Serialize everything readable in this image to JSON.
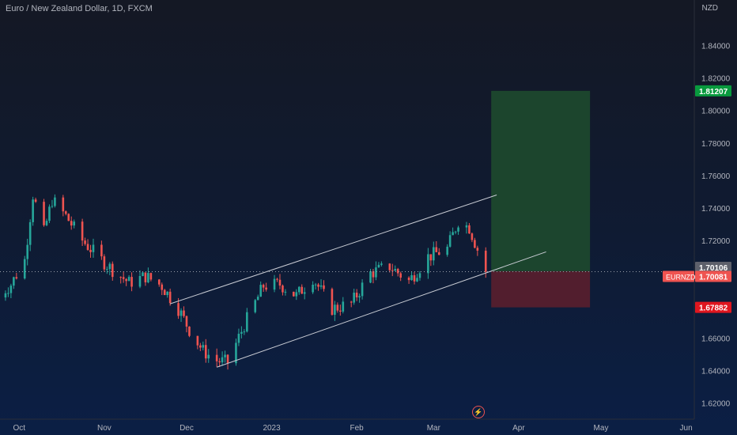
{
  "header": {
    "title": "Euro / New Zealand Dollar, 1D, FXCM",
    "currency": "NZD"
  },
  "colors": {
    "up": "#26a69a",
    "down": "#ef5350",
    "profit_zone": "#1e4a2e",
    "loss_zone": "#5a1f2e",
    "channel": "#c9ccd4",
    "axis_text": "#b2b5be"
  },
  "icons": {
    "event_marker": "lightning-icon"
  },
  "event_marker_glyph": "⚡",
  "chart_data": {
    "type": "candlestick",
    "symbol": "EURNZD",
    "title": "Euro / New Zealand Dollar, 1D, FXCM",
    "y_unit": "NZD",
    "ylim": [
      1.61,
      1.868
    ],
    "y_ticks": [
      "1.62000",
      "1.64000",
      "1.66000",
      "1.68000",
      "1.70000",
      "1.72000",
      "1.74000",
      "1.76000",
      "1.78000",
      "1.80000",
      "1.82000",
      "1.84000"
    ],
    "x_range": [
      "2022-09-24",
      "2023-06-04"
    ],
    "x_ticks": [
      {
        "label": "Oct",
        "date": "2022-10-01"
      },
      {
        "label": "Nov",
        "date": "2022-11-01"
      },
      {
        "label": "Dec",
        "date": "2022-12-01"
      },
      {
        "label": "2023",
        "date": "2023-01-01"
      },
      {
        "label": "Feb",
        "date": "2023-02-01"
      },
      {
        "label": "Mar",
        "date": "2023-03-01"
      },
      {
        "label": "Apr",
        "date": "2023-04-01"
      },
      {
        "label": "May",
        "date": "2023-05-01"
      },
      {
        "label": "Jun",
        "date": "2023-06-01"
      }
    ],
    "close_path": [
      [
        "2022-09-23",
        1.685
      ],
      [
        "2022-09-28",
        1.693
      ],
      [
        "2022-10-03",
        1.708
      ],
      [
        "2022-10-06",
        1.748
      ],
      [
        "2022-10-10",
        1.725
      ],
      [
        "2022-10-13",
        1.745
      ],
      [
        "2022-10-18",
        1.735
      ],
      [
        "2022-10-24",
        1.72
      ],
      [
        "2022-10-31",
        1.708
      ],
      [
        "2022-11-04",
        1.702
      ],
      [
        "2022-11-10",
        1.694
      ],
      [
        "2022-11-16",
        1.698
      ],
      [
        "2022-11-22",
        1.692
      ],
      [
        "2022-11-28",
        1.678
      ],
      [
        "2022-12-02",
        1.665
      ],
      [
        "2022-12-07",
        1.652
      ],
      [
        "2022-12-12",
        1.646
      ],
      [
        "2022-12-16",
        1.645
      ],
      [
        "2022-12-22",
        1.668
      ],
      [
        "2022-12-29",
        1.692
      ],
      [
        "2023-01-04",
        1.693
      ],
      [
        "2023-01-10",
        1.686
      ],
      [
        "2023-01-16",
        1.697
      ],
      [
        "2023-01-23",
        1.678
      ],
      [
        "2023-01-30",
        1.681
      ],
      [
        "2023-02-06",
        1.7
      ],
      [
        "2023-02-13",
        1.704
      ],
      [
        "2023-02-20",
        1.695
      ],
      [
        "2023-02-27",
        1.71
      ],
      [
        "2023-03-06",
        1.715
      ],
      [
        "2023-03-10",
        1.732
      ],
      [
        "2023-03-14",
        1.728
      ],
      [
        "2023-03-20",
        1.701
      ]
    ],
    "channel": {
      "upper": [
        [
          "2022-11-25",
          1.681
        ],
        [
          "2023-03-24",
          1.748
        ]
      ],
      "lower": [
        [
          "2022-12-12",
          1.642
        ],
        [
          "2023-04-11",
          1.713
        ]
      ]
    },
    "position": {
      "type": "long",
      "start": "2023-03-22",
      "end": "2023-04-27",
      "entry": 1.70106,
      "target": 1.81207,
      "stop": 1.67882
    },
    "last_price": 1.70081,
    "price_labels": [
      {
        "text": "1.81207",
        "value": 1.81207,
        "color": "#089a3e"
      },
      {
        "text": "1.70106",
        "value": 1.70106,
        "color": "#5d606b"
      },
      {
        "text": "1.70081",
        "value": 1.70081,
        "color": "#ef5350",
        "symbol": "EURNZD"
      },
      {
        "text": "1.67882",
        "value": 1.67882,
        "color": "#e0161f"
      }
    ],
    "grid": false,
    "legend": "none"
  }
}
